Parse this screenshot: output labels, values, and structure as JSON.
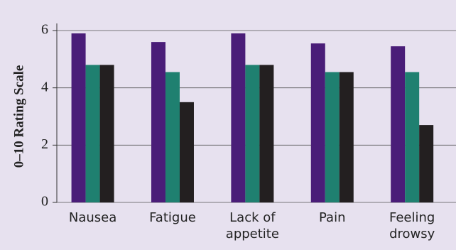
{
  "chart_data": {
    "type": "bar",
    "y_label": "0–10 Rating Scale",
    "categories": [
      "Nausea",
      "Fatigue",
      "Lack of appetite",
      "Pain",
      "Feeling drowsy"
    ],
    "series": [
      {
        "color": "#4a1d78",
        "values": [
          5.9,
          5.6,
          5.9,
          5.55,
          5.45
        ]
      },
      {
        "color": "#1f8070",
        "values": [
          4.8,
          4.55,
          4.8,
          4.55,
          4.55
        ]
      },
      {
        "color": "#231f20",
        "values": [
          4.8,
          3.5,
          4.8,
          4.55,
          2.7
        ]
      }
    ],
    "ylim": [
      0,
      6
    ],
    "yticks": [
      0,
      2,
      4,
      6
    ],
    "grid": true
  }
}
